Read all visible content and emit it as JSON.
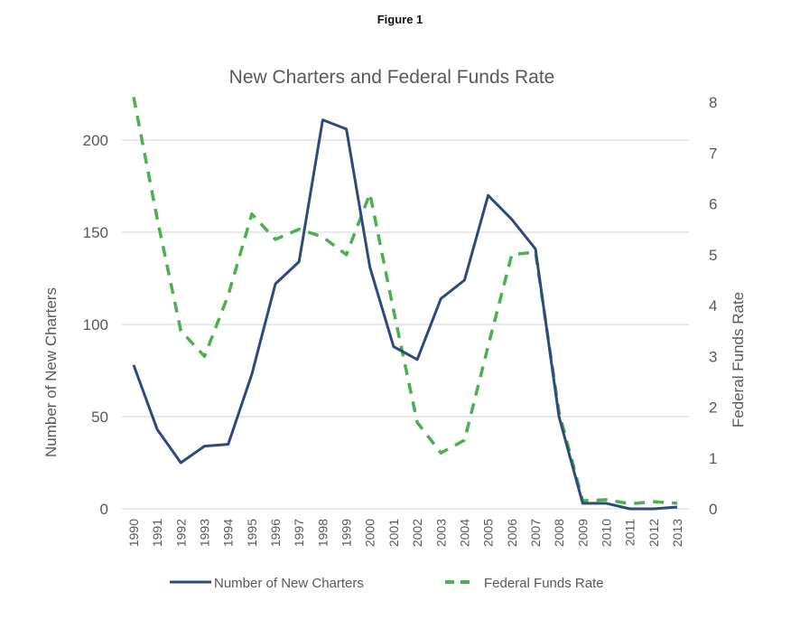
{
  "figure_label": "Figure 1",
  "chart_data": {
    "type": "line",
    "title": "New Charters and Federal Funds Rate",
    "xlabel": "",
    "ylabel": "Number of New Charters",
    "y2label": "Federal Funds Rate",
    "x": [
      "1990",
      "1991",
      "1992",
      "1993",
      "1994",
      "1995",
      "1996",
      "1997",
      "1998",
      "1999",
      "2000",
      "2001",
      "2002",
      "2003",
      "2004",
      "2005",
      "2006",
      "2007",
      "2008",
      "2009",
      "2010",
      "2011",
      "2012",
      "2013"
    ],
    "ylim": [
      0,
      220
    ],
    "y_ticks": [
      "0",
      "50",
      "100",
      "150",
      "200"
    ],
    "y_tick_values": [
      0,
      50,
      100,
      150,
      200
    ],
    "y2lim": [
      0,
      8
    ],
    "y2_ticks": [
      "0",
      "1",
      "2",
      "3",
      "4",
      "5",
      "6",
      "7",
      "8"
    ],
    "y2_tick_values": [
      0,
      1,
      2,
      3,
      4,
      5,
      6,
      7,
      8
    ],
    "grid": true,
    "legend_position": "bottom",
    "series": [
      {
        "name": "Number of New Charters",
        "axis": "left",
        "style": "solid",
        "color": "#2E4A7D",
        "values": [
          78,
          43,
          25,
          34,
          35,
          73,
          122,
          134,
          211,
          206,
          131,
          88,
          81,
          114,
          124,
          170,
          157,
          141,
          50,
          3,
          3,
          0,
          0,
          1
        ]
      },
      {
        "name": "Federal Funds Rate",
        "axis": "right",
        "style": "dashed",
        "color": "#4CAF50",
        "values": [
          8.1,
          5.7,
          3.5,
          3.0,
          4.2,
          5.8,
          5.3,
          5.5,
          5.35,
          5.0,
          6.2,
          3.9,
          1.7,
          1.1,
          1.35,
          3.2,
          5.0,
          5.05,
          1.9,
          0.16,
          0.18,
          0.1,
          0.14,
          0.11
        ]
      }
    ]
  }
}
